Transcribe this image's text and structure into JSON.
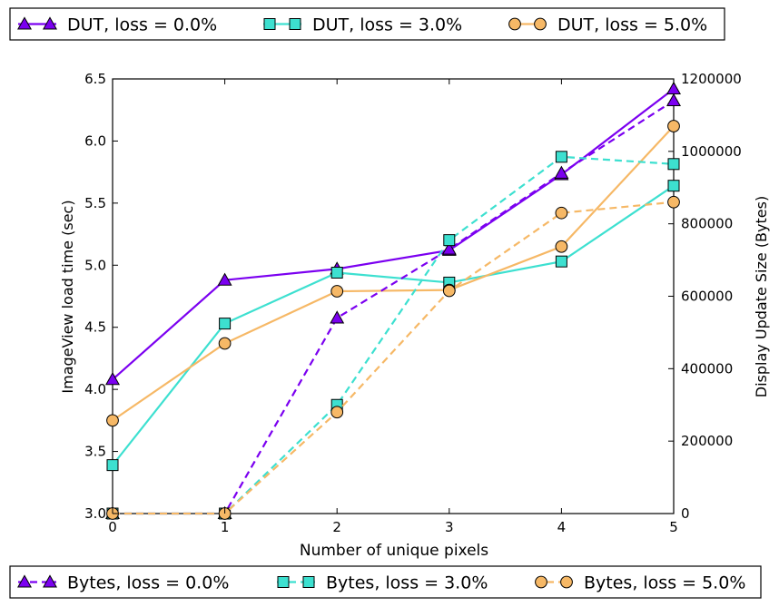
{
  "chart_data": {
    "type": "line",
    "xlabel": "Number of unique pixels",
    "ylabel": "ImageView load time (sec)",
    "y2label": "Display Update Size (Bytes)",
    "xlim": [
      0,
      5
    ],
    "ylim": [
      3.0,
      6.5
    ],
    "y2lim": [
      0,
      1200000
    ],
    "x": [
      0,
      1,
      2,
      3,
      4,
      5
    ],
    "x_ticks": [
      "0",
      "1",
      "2",
      "3",
      "4",
      "5"
    ],
    "y_ticks": [
      "3.0",
      "3.5",
      "4.0",
      "4.5",
      "5.0",
      "5.5",
      "6.0",
      "6.5"
    ],
    "y2_ticks": [
      "0",
      "200000",
      "400000",
      "600000",
      "800000",
      "1000000",
      "1200000"
    ],
    "grid": false,
    "legend_top": "above plot",
    "legend_bottom": "below plot",
    "series": [
      {
        "name": "DUT, loss = 0.0%",
        "axis": "left",
        "style": "solid",
        "marker": "triangle",
        "color": "#7b00f0",
        "values": [
          4.08,
          4.88,
          4.97,
          5.12,
          5.73,
          6.42
        ]
      },
      {
        "name": "DUT, loss = 3.0%",
        "axis": "left",
        "style": "solid",
        "marker": "square",
        "color": "#3de0d0",
        "values": [
          3.39,
          4.53,
          4.94,
          4.86,
          5.03,
          5.64
        ]
      },
      {
        "name": "DUT, loss = 5.0%",
        "axis": "left",
        "style": "solid",
        "marker": "circle",
        "color": "#f6b866",
        "values": [
          3.75,
          4.37,
          4.79,
          4.8,
          5.15,
          6.12
        ]
      },
      {
        "name": "Bytes, loss = 0.0%",
        "axis": "right",
        "style": "dashed",
        "marker": "triangle",
        "color": "#7b00f0",
        "values": [
          0,
          0,
          540000,
          730000,
          940000,
          1140000
        ]
      },
      {
        "name": "Bytes, loss = 3.0%",
        "axis": "right",
        "style": "dashed",
        "marker": "square",
        "color": "#3de0d0",
        "values": [
          0,
          0,
          300000,
          755000,
          985000,
          965000
        ]
      },
      {
        "name": "Bytes, loss = 5.0%",
        "axis": "right",
        "style": "dashed",
        "marker": "circle",
        "color": "#f6b866",
        "values": [
          0,
          0,
          280000,
          615000,
          830000,
          860000
        ]
      }
    ]
  }
}
